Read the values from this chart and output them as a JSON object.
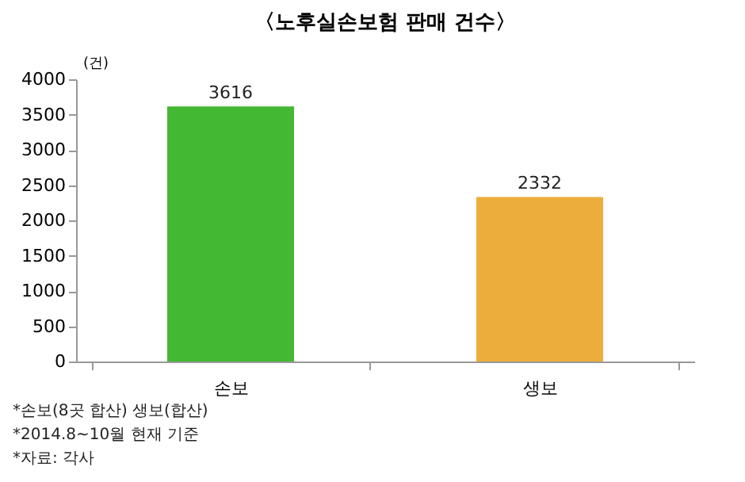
{
  "chart_data": {
    "type": "bar",
    "title": "〈노후실손보험 판매 건수〉",
    "ylabel": "(건)",
    "categories": [
      "손보",
      "생보"
    ],
    "values": [
      3616,
      2332
    ],
    "colors": [
      "#43b832",
      "#ecad3a"
    ],
    "ylim": [
      0,
      4000
    ],
    "yticks": [
      0,
      500,
      1000,
      1500,
      2000,
      2500,
      3000,
      3500,
      4000
    ],
    "data_labels": true,
    "grid": false,
    "annotations": [
      "*손보(8곳 합산) 생보(합산)",
      "*2014.8~10월 현재 기준",
      "*자료: 각사"
    ]
  }
}
